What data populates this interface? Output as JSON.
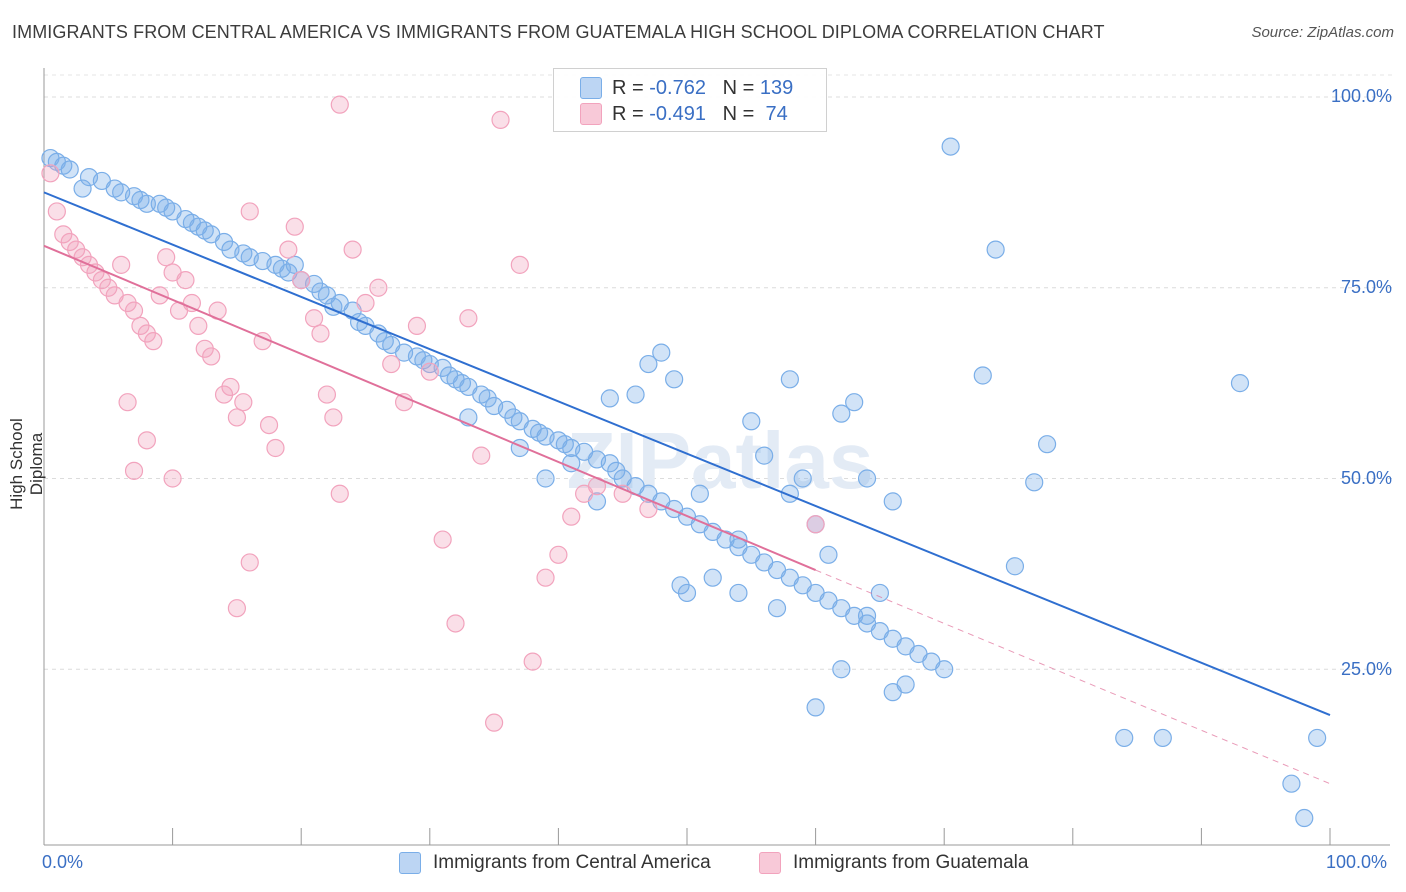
{
  "chart_data": {
    "type": "scatter",
    "title": "IMMIGRANTS FROM CENTRAL AMERICA VS IMMIGRANTS FROM GUATEMALA HIGH SCHOOL DIPLOMA CORRELATION CHART",
    "source": "Source: ZipAtlas.com",
    "ylabel": "High School Diploma",
    "xlabel": "",
    "xlim": [
      0,
      100
    ],
    "ylim": [
      0,
      102
    ],
    "x_tick_labels": {
      "left": "0.0%",
      "right": "100.0%"
    },
    "y_tick_labels": [
      "100.0%",
      "75.0%",
      "50.0%",
      "25.0%"
    ],
    "y_tick_values": [
      100,
      75,
      50,
      25
    ],
    "watermark": "ZIPatlas",
    "legend": {
      "rows": [
        {
          "r_label": "R = ",
          "r_value": "-0.762",
          "n_label": "N = ",
          "n_value": "139"
        },
        {
          "r_label": "R = ",
          "r_value": "-0.491",
          "n_label": "N = ",
          "n_value": " 74"
        }
      ]
    },
    "series": [
      {
        "name": "Immigrants from Central America",
        "color": "#7aaee8",
        "line_color": "#2f6fd0",
        "trend": {
          "x0": 0,
          "y0": 87.5,
          "x1": 100,
          "y1": 19
        },
        "points": [
          [
            0.5,
            92
          ],
          [
            1,
            91.5
          ],
          [
            1.5,
            91
          ],
          [
            2,
            90.5
          ],
          [
            3,
            88
          ],
          [
            3.5,
            89.5
          ],
          [
            4.5,
            89
          ],
          [
            5.5,
            88
          ],
          [
            6,
            87.5
          ],
          [
            7,
            87
          ],
          [
            7.5,
            86.5
          ],
          [
            8,
            86
          ],
          [
            9,
            86
          ],
          [
            9.5,
            85.5
          ],
          [
            10,
            85
          ],
          [
            11,
            84
          ],
          [
            11.5,
            83.5
          ],
          [
            12,
            83
          ],
          [
            12.5,
            82.5
          ],
          [
            13,
            82
          ],
          [
            14,
            81
          ],
          [
            14.5,
            80
          ],
          [
            15.5,
            79.5
          ],
          [
            16,
            79
          ],
          [
            17,
            78.5
          ],
          [
            18,
            78
          ],
          [
            18.5,
            77.5
          ],
          [
            19,
            77
          ],
          [
            19.5,
            78
          ],
          [
            20,
            76
          ],
          [
            21,
            75.5
          ],
          [
            21.5,
            74.5
          ],
          [
            22,
            74
          ],
          [
            22.5,
            72.5
          ],
          [
            23,
            73
          ],
          [
            24,
            72
          ],
          [
            24.5,
            70.5
          ],
          [
            25,
            70
          ],
          [
            26,
            69
          ],
          [
            26.5,
            68
          ],
          [
            27,
            67.5
          ],
          [
            28,
            66.5
          ],
          [
            29,
            66
          ],
          [
            29.5,
            65.5
          ],
          [
            30,
            65
          ],
          [
            31,
            64.5
          ],
          [
            31.5,
            63.5
          ],
          [
            32,
            63
          ],
          [
            32.5,
            62.5
          ],
          [
            33,
            62
          ],
          [
            34,
            61
          ],
          [
            34.5,
            60.5
          ],
          [
            35,
            59.5
          ],
          [
            36,
            59
          ],
          [
            36.5,
            58
          ],
          [
            37,
            57.5
          ],
          [
            38,
            56.5
          ],
          [
            38.5,
            56
          ],
          [
            39,
            55.5
          ],
          [
            40,
            55
          ],
          [
            40.5,
            54.5
          ],
          [
            41,
            54
          ],
          [
            42,
            53.5
          ],
          [
            43,
            52.5
          ],
          [
            44,
            52
          ],
          [
            44.5,
            51
          ],
          [
            45,
            50
          ],
          [
            46,
            49
          ],
          [
            47,
            48
          ],
          [
            48,
            47
          ],
          [
            49,
            46
          ],
          [
            50,
            45
          ],
          [
            51,
            44
          ],
          [
            52,
            43
          ],
          [
            53,
            42
          ],
          [
            54,
            41
          ],
          [
            55,
            40
          ],
          [
            56,
            39
          ],
          [
            57,
            38
          ],
          [
            58,
            37
          ],
          [
            59,
            36
          ],
          [
            60,
            35
          ],
          [
            61,
            34
          ],
          [
            62,
            33
          ],
          [
            63,
            32
          ],
          [
            64,
            31
          ],
          [
            65,
            30
          ],
          [
            66,
            29
          ],
          [
            67,
            28
          ],
          [
            68,
            27
          ],
          [
            69,
            26
          ],
          [
            70,
            25
          ],
          [
            48,
            66.5
          ],
          [
            47,
            65
          ],
          [
            49,
            63
          ],
          [
            46,
            61
          ],
          [
            44,
            60.5
          ],
          [
            55,
            57.5
          ],
          [
            58,
            63
          ],
          [
            62,
            58.5
          ],
          [
            63,
            60
          ],
          [
            70.5,
            93.5
          ],
          [
            74,
            80
          ],
          [
            73,
            63.5
          ],
          [
            78,
            54.5
          ],
          [
            77,
            49.5
          ],
          [
            75.5,
            38.5
          ],
          [
            93,
            62.5
          ],
          [
            99,
            16
          ],
          [
            98,
            5.5
          ],
          [
            97,
            10
          ],
          [
            87,
            16
          ],
          [
            84,
            16
          ],
          [
            59,
            50
          ],
          [
            56,
            53
          ],
          [
            58,
            48
          ],
          [
            60,
            44
          ],
          [
            64,
            50
          ],
          [
            66,
            47
          ],
          [
            52,
            37
          ],
          [
            49.5,
            36
          ],
          [
            54,
            35
          ],
          [
            50,
            35
          ],
          [
            57,
            33
          ],
          [
            60,
            20
          ],
          [
            62,
            25
          ],
          [
            66,
            22
          ],
          [
            67,
            23
          ],
          [
            64,
            32
          ],
          [
            54,
            42
          ],
          [
            51,
            48
          ],
          [
            61,
            40
          ],
          [
            65,
            35
          ],
          [
            43,
            47
          ],
          [
            39,
            50
          ],
          [
            41,
            52
          ],
          [
            37,
            54
          ],
          [
            33,
            58
          ]
        ]
      },
      {
        "name": "Immigrants from Guatemala",
        "color": "#f2a3bd",
        "line_color": "#e0709a",
        "trend": {
          "x0": 0,
          "y0": 80.5,
          "x1": 60,
          "y1": 38
        },
        "trend_dash": {
          "x0": 60,
          "y0": 38,
          "x1": 100,
          "y1": 10
        },
        "points": [
          [
            0.5,
            90
          ],
          [
            1,
            85
          ],
          [
            1.5,
            82
          ],
          [
            2,
            81
          ],
          [
            2.5,
            80
          ],
          [
            3,
            79
          ],
          [
            3.5,
            78
          ],
          [
            4,
            77
          ],
          [
            4.5,
            76
          ],
          [
            5,
            75
          ],
          [
            5.5,
            74
          ],
          [
            6,
            78
          ],
          [
            6.5,
            73
          ],
          [
            7,
            72
          ],
          [
            7.5,
            70
          ],
          [
            8,
            69
          ],
          [
            8.5,
            68
          ],
          [
            9,
            74
          ],
          [
            9.5,
            79
          ],
          [
            10,
            77
          ],
          [
            10.5,
            72
          ],
          [
            11,
            76
          ],
          [
            11.5,
            73
          ],
          [
            12,
            70
          ],
          [
            12.5,
            67
          ],
          [
            13,
            66
          ],
          [
            13.5,
            72
          ],
          [
            14,
            61
          ],
          [
            14.5,
            62
          ],
          [
            15,
            58
          ],
          [
            15.5,
            60
          ],
          [
            16,
            85
          ],
          [
            17,
            68
          ],
          [
            17.5,
            57
          ],
          [
            18,
            54
          ],
          [
            19,
            80
          ],
          [
            19.5,
            83
          ],
          [
            20,
            76
          ],
          [
            21,
            71
          ],
          [
            21.5,
            69
          ],
          [
            22,
            61
          ],
          [
            22.5,
            58
          ],
          [
            23,
            48
          ],
          [
            24,
            80
          ],
          [
            25,
            73
          ],
          [
            26,
            75
          ],
          [
            27,
            65
          ],
          [
            28,
            60
          ],
          [
            29,
            70
          ],
          [
            30,
            64
          ],
          [
            31,
            42
          ],
          [
            32,
            31
          ],
          [
            33,
            71
          ],
          [
            34,
            53
          ],
          [
            35,
            18
          ],
          [
            35.5,
            97
          ],
          [
            37,
            78
          ],
          [
            38,
            26
          ],
          [
            39,
            37
          ],
          [
            40,
            40
          ],
          [
            41,
            45
          ],
          [
            42,
            48
          ],
          [
            43,
            49
          ],
          [
            45,
            48
          ],
          [
            47,
            46
          ],
          [
            60,
            44
          ],
          [
            16,
            39
          ],
          [
            15,
            33
          ],
          [
            10,
            50
          ],
          [
            8,
            55
          ],
          [
            7,
            51
          ],
          [
            6.5,
            60
          ],
          [
            23,
            99
          ]
        ]
      }
    ]
  }
}
